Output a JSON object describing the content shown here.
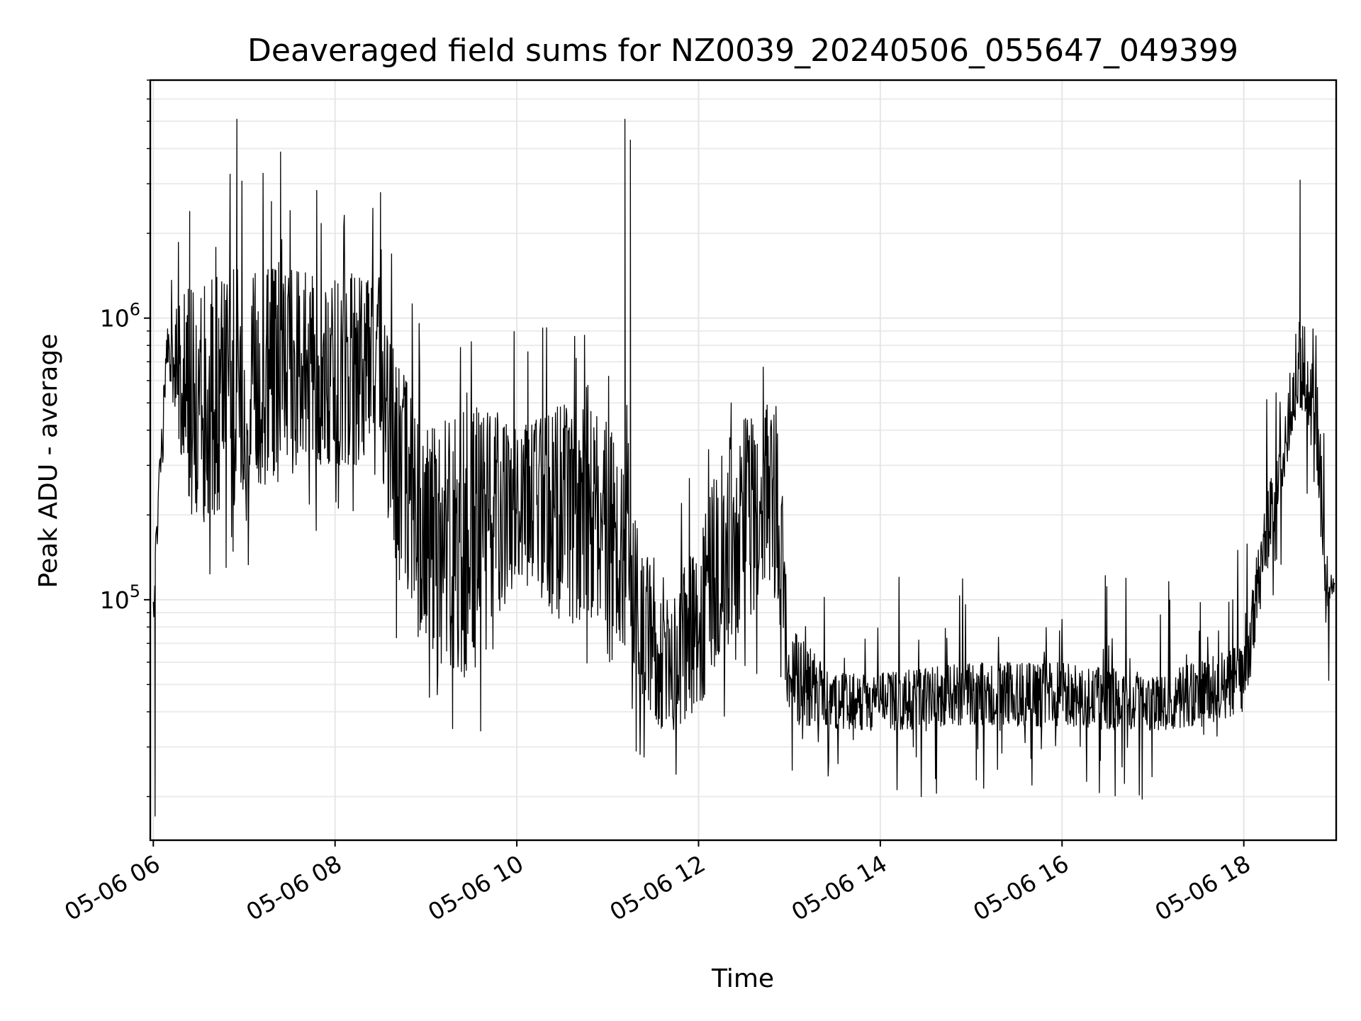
{
  "chart_data": {
    "type": "line",
    "title": "Deaveraged field sums for NZ0039_20240506_055647_049399",
    "xlabel": "Time",
    "ylabel": "Peak ADU - average",
    "y_scale": "log",
    "xlim": [
      "2024-05-06 05:58",
      "2024-05-06 19:01"
    ],
    "ylim": [
      14000,
      7000000
    ],
    "x_ticks": [
      "05-06 06",
      "05-06 08",
      "05-06 10",
      "05-06 12",
      "05-06 14",
      "05-06 16",
      "05-06 18"
    ],
    "x_tick_hours": [
      6,
      8,
      10,
      12,
      14,
      16,
      18
    ],
    "y_ticks": [
      {
        "value": 100000,
        "base": "10",
        "exponent": "5"
      },
      {
        "value": 1000000,
        "base": "10",
        "exponent": "6"
      }
    ],
    "grid": true,
    "legend": "none",
    "line_color": "#000000",
    "series": [
      {
        "envelope_hours": [
          6.0,
          6.15,
          6.4,
          6.8,
          7.5,
          8.0,
          8.5,
          8.7,
          9.0,
          9.5,
          10.0,
          10.5,
          11.0,
          11.3,
          11.6,
          12.0,
          12.2,
          12.5,
          12.85,
          13.0,
          13.5,
          14.0,
          15.0,
          16.0,
          17.0,
          17.5,
          18.0,
          18.3,
          18.6,
          18.8,
          18.9,
          19.0
        ],
        "envelope_low": [
          80000,
          700000,
          200000,
          200000,
          300000,
          300000,
          300000,
          110000,
          70000,
          50000,
          120000,
          80000,
          90000,
          50000,
          32000,
          40000,
          60000,
          80000,
          120000,
          36000,
          35000,
          34000,
          36000,
          35000,
          34000,
          35000,
          40000,
          150000,
          500000,
          300000,
          80000,
          110000
        ],
        "envelope_high": [
          120000,
          1000000,
          1300000,
          1500000,
          1500000,
          1400000,
          1400000,
          700000,
          400000,
          500000,
          400000,
          500000,
          450000,
          200000,
          100000,
          160000,
          300000,
          500000,
          500000,
          80000,
          55000,
          55000,
          60000,
          60000,
          55000,
          60000,
          70000,
          300000,
          1000000,
          900000,
          150000,
          120000
        ],
        "spikes": [
          {
            "hour": 6.92,
            "value": 5100000
          },
          {
            "hour": 7.4,
            "value": 3900000
          },
          {
            "hour": 7.3,
            "value": 2600000
          },
          {
            "hour": 8.5,
            "value": 2800000
          },
          {
            "hour": 6.4,
            "value": 2400000
          },
          {
            "hour": 11.19,
            "value": 5100000
          },
          {
            "hour": 11.25,
            "value": 4300000
          },
          {
            "hour": 18.62,
            "value": 3100000
          },
          {
            "hour": 6.02,
            "value": 17000
          }
        ]
      }
    ]
  }
}
